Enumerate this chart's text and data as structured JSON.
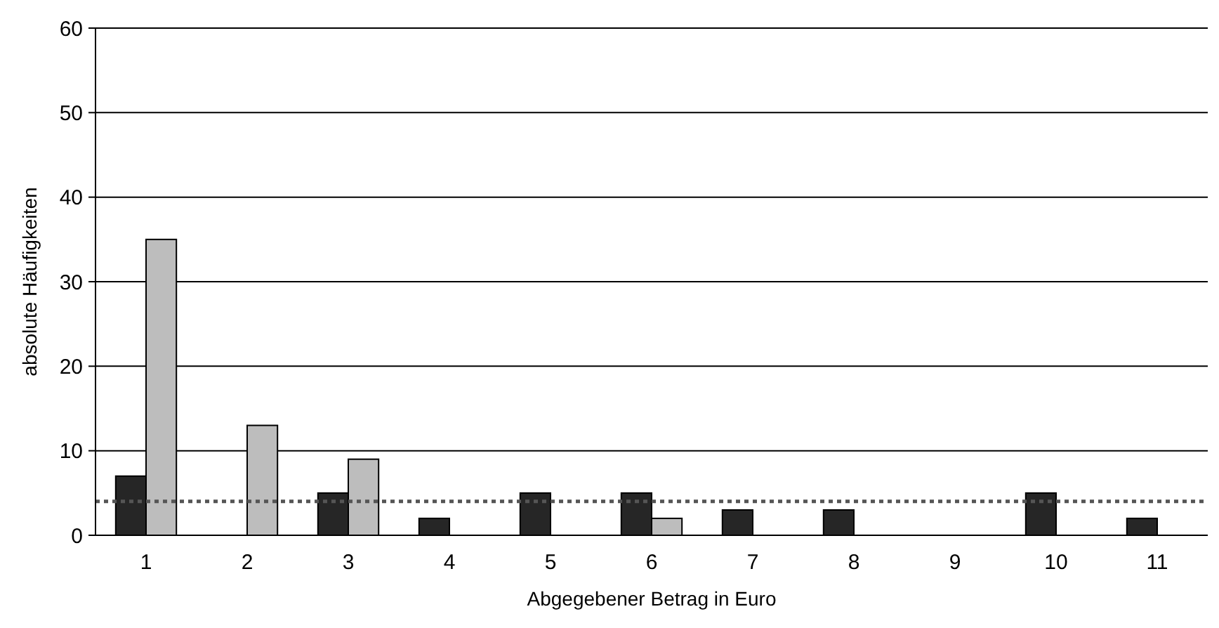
{
  "chart_data": {
    "type": "bar",
    "xlabel": "Abgegebener Betrag in Euro",
    "ylabel": "absolute Häufigkeiten",
    "categories": [
      "1",
      "2",
      "3",
      "4",
      "5",
      "6",
      "7",
      "8",
      "9",
      "10",
      "11"
    ],
    "series": [
      {
        "color": "#262626",
        "values": [
          7,
          0,
          5,
          2,
          5,
          5,
          3,
          3,
          0,
          5,
          2
        ]
      },
      {
        "color": "#bdbdbd",
        "values": [
          35,
          13,
          9,
          0,
          0,
          2,
          0,
          0,
          0,
          0,
          0
        ]
      }
    ],
    "ylim": [
      0,
      60
    ],
    "yticks": [
      0,
      10,
      20,
      30,
      40,
      50,
      60
    ],
    "grid": "y",
    "ref_lines": [
      {
        "axis": "y",
        "value": 4,
        "color": "#555555",
        "line_style": "dotted"
      }
    ]
  }
}
